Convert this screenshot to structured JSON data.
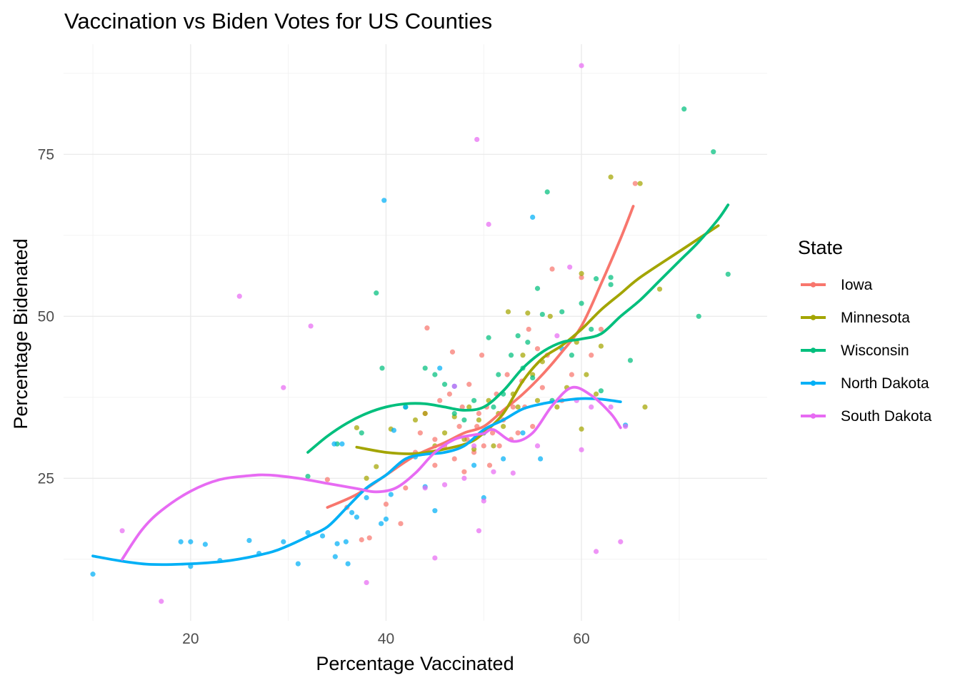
{
  "chart_data": {
    "type": "scatter",
    "title": "Vaccination vs Biden Votes for US Counties",
    "xlabel": "Percentage Vaccinated",
    "ylabel": "Percentage Bidenated",
    "xlim": [
      7,
      79
    ],
    "ylim": [
      3,
      92
    ],
    "x_ticks": [
      20,
      40,
      60
    ],
    "y_ticks": [
      25,
      50,
      75
    ],
    "grid": true,
    "legend": {
      "title": "State",
      "position": "right"
    },
    "series": [
      {
        "name": "Iowa",
        "color": "#F8766D",
        "points": [
          [
            34,
            24.8
          ],
          [
            36,
            20.5
          ],
          [
            37.5,
            15.5
          ],
          [
            38.3,
            15.8
          ],
          [
            40,
            21
          ],
          [
            41.5,
            18
          ],
          [
            42,
            23.5
          ],
          [
            43,
            29
          ],
          [
            43.5,
            32
          ],
          [
            44,
            35
          ],
          [
            44.2,
            48.2
          ],
          [
            45,
            27
          ],
          [
            45,
            31
          ],
          [
            45.5,
            37
          ],
          [
            46,
            30
          ],
          [
            46.5,
            38
          ],
          [
            46.8,
            44.5
          ],
          [
            47,
            28
          ],
          [
            47.5,
            33
          ],
          [
            47.8,
            36
          ],
          [
            48,
            26
          ],
          [
            48.3,
            31
          ],
          [
            48.5,
            39.5
          ],
          [
            49,
            29
          ],
          [
            49.3,
            33
          ],
          [
            49.5,
            35
          ],
          [
            49.8,
            44
          ],
          [
            50,
            30
          ],
          [
            50.3,
            36
          ],
          [
            50.6,
            27
          ],
          [
            50.9,
            32
          ],
          [
            51.3,
            38
          ],
          [
            51.6,
            30
          ],
          [
            52,
            34
          ],
          [
            52.4,
            41
          ],
          [
            52.8,
            31
          ],
          [
            53,
            36
          ],
          [
            53.5,
            32
          ],
          [
            53.9,
            40
          ],
          [
            54.2,
            36
          ],
          [
            54.6,
            48
          ],
          [
            55,
            33
          ],
          [
            55.5,
            45
          ],
          [
            56,
            39
          ],
          [
            56.5,
            44
          ],
          [
            57,
            57.3
          ],
          [
            58,
            37
          ],
          [
            59,
            41
          ],
          [
            60,
            56
          ],
          [
            61,
            44
          ],
          [
            62,
            48
          ],
          [
            65.5,
            70.5
          ]
        ],
        "trend": [
          [
            34,
            20.5
          ],
          [
            37,
            22.5
          ],
          [
            40,
            25.5
          ],
          [
            43,
            28.5
          ],
          [
            46,
            30.5
          ],
          [
            48,
            32
          ],
          [
            50,
            33
          ],
          [
            52,
            35.5
          ],
          [
            54,
            38
          ],
          [
            56,
            41
          ],
          [
            58,
            44.5
          ],
          [
            60,
            48.5
          ],
          [
            62,
            55
          ],
          [
            64,
            62
          ],
          [
            65.3,
            67
          ]
        ]
      },
      {
        "name": "Minnesota",
        "color": "#A3A500",
        "points": [
          [
            37,
            32.8
          ],
          [
            38,
            25
          ],
          [
            39,
            26.8
          ],
          [
            40.5,
            32.6
          ],
          [
            43,
            34
          ],
          [
            44,
            35
          ],
          [
            45,
            30
          ],
          [
            46,
            32
          ],
          [
            47,
            34.5
          ],
          [
            48,
            31
          ],
          [
            48.5,
            36
          ],
          [
            49,
            29.5
          ],
          [
            49.5,
            34
          ],
          [
            50,
            32
          ],
          [
            50.5,
            37
          ],
          [
            51,
            30
          ],
          [
            51.5,
            35
          ],
          [
            52,
            33
          ],
          [
            52.5,
            50.7
          ],
          [
            53,
            38
          ],
          [
            53.5,
            36
          ],
          [
            54,
            44
          ],
          [
            54.5,
            50.5
          ],
          [
            55,
            41
          ],
          [
            55.5,
            37
          ],
          [
            56,
            43
          ],
          [
            56.8,
            50
          ],
          [
            57.5,
            36
          ],
          [
            58.5,
            39
          ],
          [
            59.5,
            46
          ],
          [
            60,
            56.6
          ],
          [
            60.5,
            41
          ],
          [
            61.5,
            38
          ],
          [
            62,
            45.4
          ],
          [
            63,
            71.5
          ],
          [
            66,
            70.5
          ],
          [
            66.5,
            36
          ],
          [
            68,
            54.2
          ],
          [
            60,
            32.6
          ]
        ],
        "trend": [
          [
            37,
            29.8
          ],
          [
            40,
            29
          ],
          [
            43,
            28.8
          ],
          [
            46,
            29.5
          ],
          [
            48.5,
            30.5
          ],
          [
            50,
            32
          ],
          [
            52,
            35
          ],
          [
            54,
            40
          ],
          [
            56,
            43.5
          ],
          [
            58,
            45.5
          ],
          [
            60,
            48
          ],
          [
            62,
            51
          ],
          [
            64,
            53.5
          ],
          [
            66,
            56
          ],
          [
            70,
            60
          ],
          [
            72,
            62
          ],
          [
            74,
            64
          ]
        ]
      },
      {
        "name": "Wisconsin",
        "color": "#00BF7D",
        "points": [
          [
            32,
            25.3
          ],
          [
            35,
            30.3
          ],
          [
            37.5,
            32
          ],
          [
            39,
            53.6
          ],
          [
            39.6,
            42
          ],
          [
            42,
            36
          ],
          [
            44,
            42
          ],
          [
            45,
            41
          ],
          [
            46,
            39.5
          ],
          [
            47,
            35
          ],
          [
            48,
            34
          ],
          [
            49,
            37
          ],
          [
            50,
            32
          ],
          [
            50.5,
            46.7
          ],
          [
            51,
            36
          ],
          [
            51.5,
            41
          ],
          [
            52,
            38
          ],
          [
            52.8,
            44
          ],
          [
            53.5,
            47
          ],
          [
            54,
            42
          ],
          [
            54.5,
            46
          ],
          [
            55,
            40.5
          ],
          [
            55.5,
            54.3
          ],
          [
            56,
            50.3
          ],
          [
            56.5,
            69.2
          ],
          [
            57,
            37
          ],
          [
            58,
            50.7
          ],
          [
            59,
            44
          ],
          [
            60,
            52
          ],
          [
            61,
            48
          ],
          [
            61.5,
            55.8
          ],
          [
            62,
            38.5
          ],
          [
            63,
            56
          ],
          [
            63,
            54.9
          ],
          [
            65,
            43.2
          ],
          [
            70.5,
            82
          ],
          [
            72,
            50
          ],
          [
            73.5,
            75.4
          ],
          [
            75,
            56.5
          ]
        ],
        "trend": [
          [
            32,
            29
          ],
          [
            34,
            31.5
          ],
          [
            36,
            33.5
          ],
          [
            38,
            35
          ],
          [
            40,
            36
          ],
          [
            42,
            36.5
          ],
          [
            44,
            36.5
          ],
          [
            46,
            36
          ],
          [
            48,
            35.5
          ],
          [
            50,
            36
          ],
          [
            52,
            38.5
          ],
          [
            54,
            42
          ],
          [
            56,
            44.5
          ],
          [
            58,
            46
          ],
          [
            60,
            46.5
          ],
          [
            62,
            47.3
          ],
          [
            64,
            50
          ],
          [
            66,
            52.5
          ],
          [
            68,
            55.5
          ],
          [
            70,
            58.5
          ],
          [
            72,
            61.5
          ],
          [
            74,
            65
          ],
          [
            75,
            67.2
          ]
        ]
      },
      {
        "name": "North Dakota",
        "color": "#00B0F6",
        "points": [
          [
            10,
            10.2
          ],
          [
            19,
            15.2
          ],
          [
            20,
            15.2
          ],
          [
            20,
            11.4
          ],
          [
            21.5,
            14.8
          ],
          [
            23,
            12.3
          ],
          [
            26,
            15.4
          ],
          [
            27,
            13.4
          ],
          [
            29.5,
            15.2
          ],
          [
            31,
            11.8
          ],
          [
            32,
            16.6
          ],
          [
            33.5,
            16.1
          ],
          [
            34.7,
            30.3
          ],
          [
            35,
            14.9
          ],
          [
            34.8,
            12.9
          ],
          [
            35.5,
            30.3
          ],
          [
            35.9,
            15.2
          ],
          [
            36.1,
            11.8
          ],
          [
            36.5,
            19.7
          ],
          [
            37,
            19
          ],
          [
            38,
            22
          ],
          [
            39.5,
            18
          ],
          [
            39.8,
            67.9
          ],
          [
            40,
            18.7
          ],
          [
            40.5,
            22.5
          ],
          [
            40.8,
            32.4
          ],
          [
            42,
            36
          ],
          [
            43,
            28.3
          ],
          [
            44,
            23.7
          ],
          [
            45,
            20
          ],
          [
            45.5,
            42
          ],
          [
            47,
            39.2
          ],
          [
            49,
            27
          ],
          [
            50,
            22
          ],
          [
            52,
            28
          ],
          [
            54,
            32
          ],
          [
            55,
            65.3
          ],
          [
            55.8,
            28
          ],
          [
            58,
            45
          ],
          [
            64.5,
            33.2
          ]
        ],
        "trend": [
          [
            10,
            13
          ],
          [
            13,
            12.2
          ],
          [
            16,
            11.7
          ],
          [
            20,
            11.8
          ],
          [
            24,
            12.3
          ],
          [
            28,
            13.5
          ],
          [
            30,
            14.6
          ],
          [
            32,
            16
          ],
          [
            34,
            17.5
          ],
          [
            36,
            20.5
          ],
          [
            38,
            23.5
          ],
          [
            40,
            25.5
          ],
          [
            42,
            28
          ],
          [
            44,
            28.7
          ],
          [
            46,
            29
          ],
          [
            48,
            30
          ],
          [
            50,
            32.5
          ],
          [
            52,
            34
          ],
          [
            54,
            35.7
          ],
          [
            56,
            36.5
          ],
          [
            58,
            37
          ],
          [
            60,
            37.3
          ],
          [
            62,
            37.2
          ],
          [
            64,
            36.8
          ]
        ]
      },
      {
        "name": "South Dakota",
        "color": "#E76BF3",
        "points": [
          [
            13,
            16.9
          ],
          [
            17,
            6
          ],
          [
            25,
            53.1
          ],
          [
            29.5,
            39
          ],
          [
            32.3,
            48.5
          ],
          [
            38,
            8.9
          ],
          [
            44,
            23.5
          ],
          [
            45,
            12.7
          ],
          [
            46,
            24
          ],
          [
            47,
            39.2
          ],
          [
            48,
            25
          ],
          [
            49,
            30
          ],
          [
            49.3,
            77.3
          ],
          [
            49.5,
            16.9
          ],
          [
            50,
            21.5
          ],
          [
            50.5,
            64.2
          ],
          [
            51,
            26
          ],
          [
            53,
            25.8
          ],
          [
            55.5,
            30
          ],
          [
            57.5,
            47
          ],
          [
            58.8,
            57.6
          ],
          [
            59.5,
            37
          ],
          [
            60,
            88.7
          ],
          [
            60,
            29.4
          ],
          [
            61,
            36
          ],
          [
            61.5,
            13.7
          ],
          [
            63,
            36
          ],
          [
            64,
            15.2
          ],
          [
            64.5,
            33
          ]
        ],
        "trend": [
          [
            13,
            12.5
          ],
          [
            15,
            17
          ],
          [
            17,
            20
          ],
          [
            20,
            23
          ],
          [
            23,
            24.8
          ],
          [
            26,
            25.4
          ],
          [
            28,
            25.5
          ],
          [
            31,
            25
          ],
          [
            34,
            24.2
          ],
          [
            37,
            23.4
          ],
          [
            39,
            22.9
          ],
          [
            41,
            23.5
          ],
          [
            43,
            25.8
          ],
          [
            45,
            29
          ],
          [
            47,
            31
          ],
          [
            49,
            31.7
          ],
          [
            50,
            31.9
          ],
          [
            51,
            32.5
          ],
          [
            53,
            30.7
          ],
          [
            55,
            32
          ],
          [
            57,
            36.2
          ],
          [
            59,
            39
          ],
          [
            61,
            37.8
          ],
          [
            63,
            35
          ],
          [
            64,
            32.8
          ]
        ]
      }
    ]
  }
}
